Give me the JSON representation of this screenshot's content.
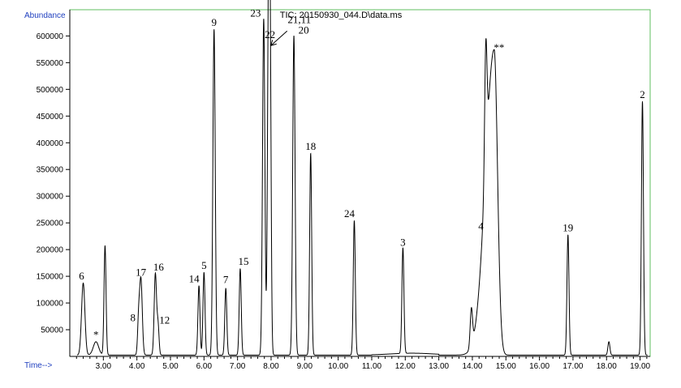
{
  "chart_data": {
    "type": "line",
    "title": "TIC: 20150930_044.D\\data.ms",
    "ylabel": "Abundance",
    "xlabel": "Time-->",
    "xlim": [
      2.0,
      19.3
    ],
    "ylim": [
      0,
      640000
    ],
    "x_ticks": [
      "3.00",
      "4.00",
      "5.00",
      "6.00",
      "7.00",
      "8.00",
      "9.00",
      "10.00",
      "11.00",
      "12.00",
      "13.00",
      "14.00",
      "15.00",
      "16.00",
      "17.00",
      "18.00",
      "19.00"
    ],
    "y_ticks": [
      "50000",
      "100000",
      "150000",
      "200000",
      "250000",
      "300000",
      "350000",
      "400000",
      "450000",
      "500000",
      "550000",
      "600000"
    ],
    "grid": false,
    "line_color": "#000000",
    "peaks": [
      {
        "t": 2.4,
        "height": 135000,
        "width": 0.05,
        "label": "6"
      },
      {
        "t": 2.78,
        "height": 25000,
        "width": 0.08,
        "label": "*"
      },
      {
        "t": 3.05,
        "height": 205000,
        "width": 0.03,
        "label": ""
      },
      {
        "t": 4.05,
        "height": 60000,
        "width": 0.03,
        "label": "8"
      },
      {
        "t": 4.12,
        "height": 142000,
        "width": 0.04,
        "label": "17"
      },
      {
        "t": 4.55,
        "height": 152000,
        "width": 0.035,
        "label": "16"
      },
      {
        "t": 4.63,
        "height": 55000,
        "width": 0.03,
        "label": "12"
      },
      {
        "t": 5.85,
        "height": 130000,
        "width": 0.03,
        "label": "14"
      },
      {
        "t": 6.0,
        "height": 155000,
        "width": 0.03,
        "label": "5"
      },
      {
        "t": 6.3,
        "height": 610000,
        "width": 0.035,
        "label": "9"
      },
      {
        "t": 6.65,
        "height": 125000,
        "width": 0.03,
        "label": "7"
      },
      {
        "t": 7.08,
        "height": 162000,
        "width": 0.03,
        "label": "15"
      },
      {
        "t": 7.78,
        "height": 630000,
        "width": 0.035,
        "label": "23"
      },
      {
        "t": 7.92,
        "height": 590000,
        "width": 0.03,
        "label": "22"
      },
      {
        "t": 7.97,
        "height": 585000,
        "width": 0.03,
        "label": "21,11"
      },
      {
        "t": 8.68,
        "height": 598000,
        "width": 0.035,
        "label": "20"
      },
      {
        "t": 9.18,
        "height": 378000,
        "width": 0.03,
        "label": "18"
      },
      {
        "t": 10.48,
        "height": 252000,
        "width": 0.03,
        "label": "24"
      },
      {
        "t": 11.93,
        "height": 198000,
        "width": 0.03,
        "label": "3"
      },
      {
        "t": 13.97,
        "height": 70000,
        "width": 0.035,
        "label": ""
      },
      {
        "t": 14.4,
        "height": 228000,
        "width": 0.035,
        "label": "4"
      },
      {
        "t": 14.65,
        "height": 572000,
        "width": 0.1,
        "label": "**"
      },
      {
        "t": 16.85,
        "height": 225000,
        "width": 0.03,
        "label": "19"
      },
      {
        "t": 18.07,
        "height": 25000,
        "width": 0.03,
        "label": ""
      },
      {
        "t": 19.07,
        "height": 475000,
        "width": 0.03,
        "label": "2"
      }
    ]
  }
}
